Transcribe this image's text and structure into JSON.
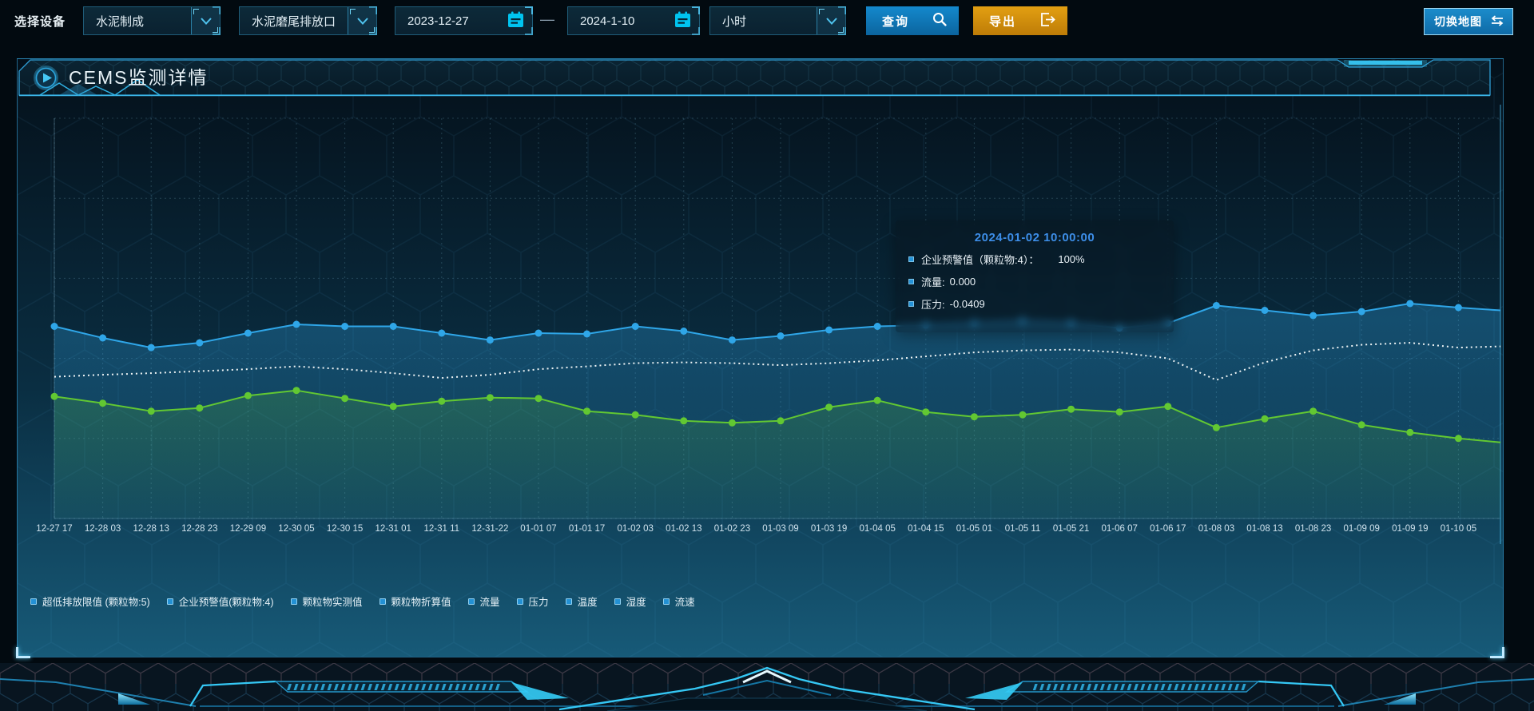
{
  "toolbar": {
    "device_label": "选择设备",
    "selects": [
      {
        "value": "水泥制成"
      },
      {
        "value": "水泥磨尾排放口"
      }
    ],
    "date_start": "2023-12-27",
    "date_separator": "—",
    "date_end": "2024-1-10",
    "interval_select": {
      "value": "小时"
    },
    "query_label": "查询",
    "export_label": "导出",
    "switch_map_label": "切换地图"
  },
  "panel": {
    "title": "CEMS监测详情"
  },
  "tooltip": {
    "title": "2024-01-02 10:00:00",
    "rows": [
      {
        "label": "企业预警值（颗粒物:4）：",
        "value": "100%"
      },
      {
        "label": "流量:",
        "value": "0.000"
      },
      {
        "label": "压力:",
        "value": "-0.0409"
      }
    ]
  },
  "chart_data": {
    "type": "line",
    "title": "",
    "xlabel": "",
    "ylabel": "",
    "y_axis_visible": false,
    "grid": true,
    "legend_position": "bottom",
    "note": "no y-axis tick labels visible; series values given as percent of plot height from bottom",
    "x_labels": [
      "12-27 17",
      "12-28 03",
      "12-28 13",
      "12-28 23",
      "12-29 09",
      "12-30 05",
      "12-30 15",
      "12-31 01",
      "12-31 11",
      "12-31-22",
      "01-01 07",
      "01-01 17",
      "01-02 03",
      "01-02 13",
      "01-02 23",
      "01-03 09",
      "01-03 19",
      "01-04 05",
      "01-04 15",
      "01-05 01",
      "01-05 11",
      "01-05 21",
      "01-06 07",
      "01-06 17",
      "01-08 03",
      "01-08 13",
      "01-08 23",
      "01-09 09",
      "01-09 19",
      "01-10 05"
    ],
    "legend": [
      "超低排放限值 (颗粒物:5)",
      "企业预警值(颗粒物:4)",
      "颗粒物实测值",
      "颗粒物折算值",
      "流量",
      "压力",
      "温度",
      "湿度",
      "流速"
    ],
    "series": [
      {
        "name": "blue_line",
        "color": "#2fa6e8",
        "style": "solid",
        "markers": true,
        "area": true,
        "values_pct": [
          48.0,
          45.1,
          42.7,
          43.9,
          46.3,
          48.5,
          48.0,
          48.0,
          46.3,
          44.6,
          46.3,
          46.1,
          48.0,
          46.8,
          44.6,
          45.6,
          47.1,
          48.0,
          48.3,
          48.8,
          49.3,
          48.8,
          47.6,
          48.8,
          53.2,
          52.0,
          50.7,
          51.7,
          53.7,
          52.7
        ],
        "edge_pct": 52.0
      },
      {
        "name": "white_dotted_line",
        "color": "#eef4f5",
        "style": "dotted",
        "markers": false,
        "area": false,
        "values_pct": [
          35.4,
          35.9,
          36.3,
          36.8,
          37.3,
          38.0,
          37.3,
          36.3,
          35.1,
          35.9,
          37.3,
          38.0,
          38.8,
          39.0,
          38.8,
          38.3,
          38.8,
          39.5,
          40.5,
          41.5,
          42.0,
          42.2,
          41.5,
          40.0,
          34.6,
          39.0,
          42.0,
          43.4,
          43.9,
          42.7
        ],
        "edge_pct": 43.0
      },
      {
        "name": "green_line",
        "color": "#62c832",
        "style": "solid",
        "markers": true,
        "area": true,
        "values_pct": [
          30.5,
          28.8,
          26.8,
          27.6,
          30.7,
          32.0,
          30.0,
          28.0,
          29.3,
          30.2,
          30.0,
          26.8,
          25.9,
          24.4,
          23.9,
          24.4,
          27.8,
          29.5,
          26.6,
          25.4,
          25.9,
          27.3,
          26.6,
          28.0,
          22.7,
          24.9,
          26.8,
          23.4,
          21.5,
          20.0
        ],
        "edge_pct": 19.0
      }
    ]
  },
  "colors": {
    "accent_cyan": "#35c8f5",
    "panel_border": "#369ed5",
    "query_button": "#1489cd",
    "export_button": "#dd9a0f",
    "tooltip_title": "#3d8ee8",
    "grid_line": "rgba(120,180,205,0.25)"
  }
}
